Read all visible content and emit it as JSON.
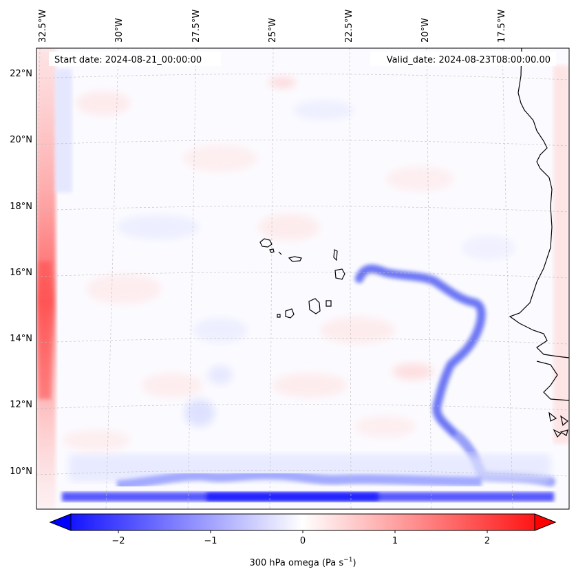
{
  "map": {
    "start_date_label": "Start date: 2024-08-21_00:00:00",
    "valid_date_label": "Valid_date: 2024-08-23T08:00:00.00",
    "lon_labels": [
      "32.5°W",
      "30°W",
      "27.5°W",
      "25°W",
      "22.5°W",
      "20°W",
      "17.5°W"
    ],
    "lat_labels": [
      "22°N",
      "20°N",
      "18°N",
      "16°N",
      "14°N",
      "12°N",
      "10°N"
    ],
    "variable": "300 hPa omega"
  },
  "colorbar": {
    "ticks": [
      "−2",
      "−1",
      "0",
      "1",
      "2"
    ],
    "label_main": "300 hPa omega (Pa s",
    "label_exp": "−1",
    "label_end": ")",
    "colors": {
      "low": "#0000ff",
      "mid": "#ffffff",
      "high": "#ff0000"
    }
  }
}
